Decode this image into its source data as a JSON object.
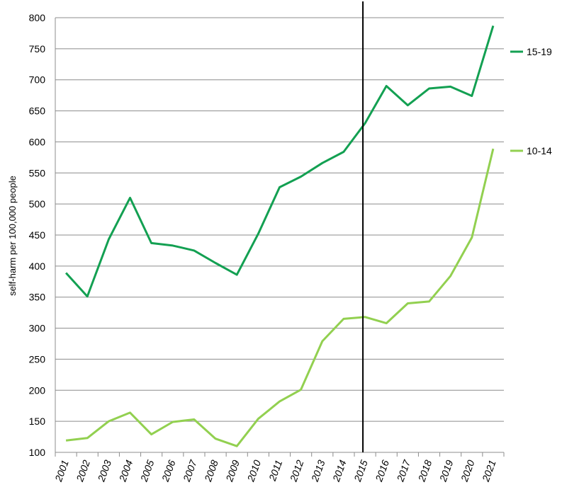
{
  "chart_data": {
    "type": "line",
    "title": "",
    "xlabel": "",
    "ylabel": "self-harm per 100,000 people",
    "ylim": [
      100,
      800
    ],
    "yticks": [
      100,
      150,
      200,
      250,
      300,
      350,
      400,
      450,
      500,
      550,
      600,
      650,
      700,
      750,
      800
    ],
    "grid": true,
    "legend_position": "right",
    "vertical_marker": "2015",
    "categories": [
      "2001",
      "2002",
      "2003",
      "2004",
      "2005",
      "2006",
      "2007",
      "2008",
      "2009",
      "2010",
      "2011",
      "2012",
      "2013",
      "2014",
      "2015",
      "2016",
      "2017",
      "2018",
      "2019",
      "2020",
      "2021"
    ],
    "series": [
      {
        "name": "15-19",
        "color": "#13a052",
        "values": [
          389,
          351,
          443,
          510,
          437,
          433,
          425,
          405,
          386,
          452,
          527,
          544,
          566,
          584,
          630,
          690,
          659,
          686,
          689,
          674,
          787
        ]
      },
      {
        "name": "10-14",
        "color": "#92d050",
        "values": [
          119,
          123,
          150,
          164,
          129,
          149,
          153,
          122,
          110,
          154,
          182,
          201,
          279,
          315,
          318,
          308,
          340,
          343,
          384,
          446,
          589
        ]
      }
    ],
    "marker_color": "#000000"
  }
}
